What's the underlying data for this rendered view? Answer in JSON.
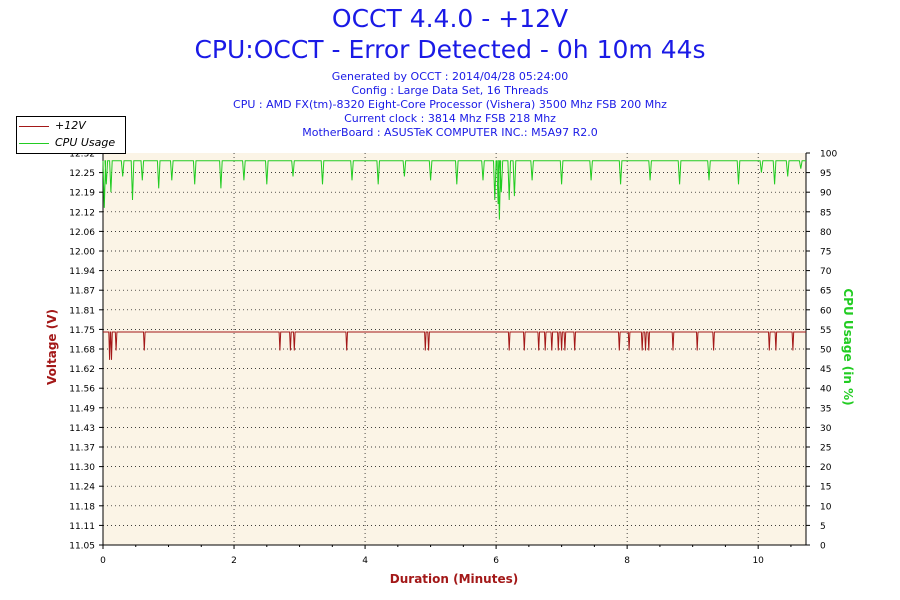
{
  "header": {
    "title1": "OCCT 4.4.0 - +12V",
    "title2": "CPU:OCCT - Error Detected - 0h 10m 44s",
    "lines": [
      "Generated by OCCT : 2014/04/28 05:24:00",
      "Config : Large Data Set, 16 Threads",
      "CPU : AMD FX(tm)-8320 Eight-Core Processor (Vishera) 3500 Mhz FSB 200 Mhz",
      "Current clock : 3814 Mhz FSB 218 Mhz",
      "MotherBoard : ASUSTeK COMPUTER INC.: M5A97 R2.0"
    ]
  },
  "legend": [
    {
      "label": "+12V",
      "color": "#a31818"
    },
    {
      "label": "CPU Usage",
      "color": "#22cc22"
    }
  ],
  "chart_data": {
    "type": "line",
    "xlabel": "Duration (Minutes)",
    "ylabel": "Voltage (V)",
    "y2label": "CPU Usage (in %)",
    "xlim": [
      0,
      10.73
    ],
    "ylim": [
      11.05,
      12.32
    ],
    "y2lim": [
      0,
      100
    ],
    "x_ticks": [
      "0",
      "2",
      "4",
      "6",
      "8",
      "10"
    ],
    "y_ticks": [
      "11.05",
      "11.11",
      "11.18",
      "11.24",
      "11.30",
      "11.37",
      "11.43",
      "11.49",
      "11.56",
      "11.62",
      "11.68",
      "11.75",
      "11.81",
      "11.87",
      "11.94",
      "12.00",
      "12.06",
      "12.12",
      "12.19",
      "12.25",
      "12.32"
    ],
    "y2_ticks": [
      "0",
      "5",
      "10",
      "15",
      "20",
      "25",
      "30",
      "35",
      "40",
      "45",
      "50",
      "55",
      "60",
      "65",
      "70",
      "75",
      "80",
      "85",
      "90",
      "95",
      "100"
    ],
    "grid": true,
    "legend_position": "top-left",
    "series": [
      {
        "name": "+12V",
        "axis": "left",
        "color": "#a31818",
        "baseline": 11.74,
        "dips": [
          [
            0.1,
            11.65
          ],
          [
            0.13,
            11.65
          ],
          [
            0.2,
            11.68
          ],
          [
            0.63,
            11.68
          ],
          [
            2.7,
            11.68
          ],
          [
            2.86,
            11.68
          ],
          [
            2.92,
            11.68
          ],
          [
            3.72,
            11.68
          ],
          [
            4.92,
            11.68
          ],
          [
            4.97,
            11.68
          ],
          [
            6.2,
            11.68
          ],
          [
            6.43,
            11.68
          ],
          [
            6.65,
            11.68
          ],
          [
            6.75,
            11.68
          ],
          [
            6.85,
            11.68
          ],
          [
            6.95,
            11.68
          ],
          [
            7.0,
            11.68
          ],
          [
            7.05,
            11.68
          ],
          [
            7.2,
            11.68
          ],
          [
            7.88,
            11.68
          ],
          [
            8.03,
            11.68
          ],
          [
            8.23,
            11.68
          ],
          [
            8.28,
            11.68
          ],
          [
            8.33,
            11.68
          ],
          [
            8.7,
            11.68
          ],
          [
            9.07,
            11.68
          ],
          [
            9.32,
            11.68
          ],
          [
            10.17,
            11.68
          ],
          [
            10.27,
            11.68
          ],
          [
            10.53,
            11.68
          ]
        ]
      },
      {
        "name": "CPU Usage",
        "axis": "right",
        "color": "#22cc22",
        "baseline": 98,
        "dips": [
          [
            0.02,
            86
          ],
          [
            0.05,
            92
          ],
          [
            0.12,
            90
          ],
          [
            0.3,
            94
          ],
          [
            0.45,
            88
          ],
          [
            0.6,
            93
          ],
          [
            0.85,
            91
          ],
          [
            1.05,
            93
          ],
          [
            1.4,
            92
          ],
          [
            1.8,
            91
          ],
          [
            2.15,
            93
          ],
          [
            2.5,
            92
          ],
          [
            2.9,
            94
          ],
          [
            3.35,
            92
          ],
          [
            3.8,
            93
          ],
          [
            4.2,
            92
          ],
          [
            4.6,
            94
          ],
          [
            5.0,
            93
          ],
          [
            5.4,
            92
          ],
          [
            5.8,
            93
          ],
          [
            5.98,
            88
          ],
          [
            6.03,
            87
          ],
          [
            6.05,
            83
          ],
          [
            6.08,
            90
          ],
          [
            6.2,
            88
          ],
          [
            6.28,
            89
          ],
          [
            6.55,
            93
          ],
          [
            7.0,
            92
          ],
          [
            7.45,
            93
          ],
          [
            7.9,
            92
          ],
          [
            8.35,
            93
          ],
          [
            8.8,
            92
          ],
          [
            9.25,
            93
          ],
          [
            9.7,
            92
          ],
          [
            10.05,
            95
          ],
          [
            10.25,
            92
          ],
          [
            10.45,
            94
          ],
          [
            10.65,
            96
          ]
        ]
      }
    ]
  }
}
